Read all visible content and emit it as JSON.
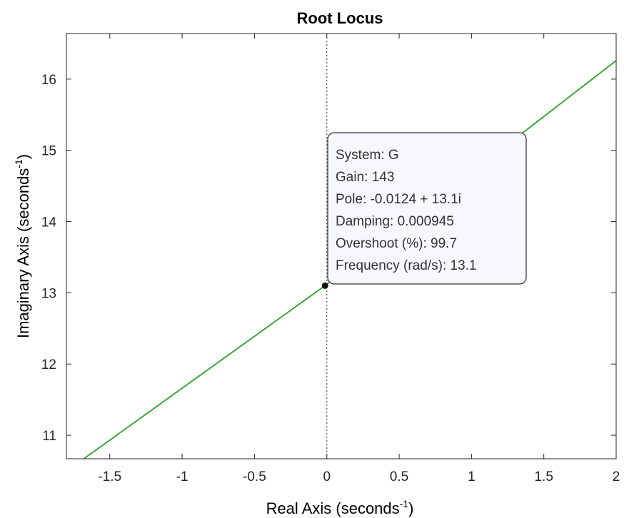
{
  "chart_data": {
    "type": "line",
    "title": "Root Locus",
    "xlabel": {
      "text": "Real Axis (seconds",
      "exponent": "-1",
      "close": ")"
    },
    "ylabel": {
      "text": "Imaginary Axis (seconds",
      "exponent": "-1",
      "close": ")"
    },
    "xlim": [
      -1.8,
      2
    ],
    "ylim": [
      10.67,
      16.64
    ],
    "xticks": [
      -1.5,
      -1,
      -0.5,
      0,
      0.5,
      1,
      1.5,
      2
    ],
    "xtick_labels": [
      "-1.5",
      "-1",
      "-0.5",
      "0",
      "0.5",
      "1",
      "1.5",
      "2"
    ],
    "yticks": [
      11,
      12,
      13,
      14,
      15,
      16
    ],
    "ytick_labels": [
      "11",
      "12",
      "13",
      "14",
      "15",
      "16"
    ],
    "grid": false,
    "series": [
      {
        "color": "#2ca02c",
        "x": [
          -1.68,
          -0.0124,
          2.0
        ],
        "y": [
          10.67,
          13.1,
          16.26
        ]
      }
    ],
    "reference_line": {
      "x": 0,
      "style": "dotted",
      "color": "#555555"
    },
    "marker": {
      "x": -0.0124,
      "y": 13.1,
      "color": "#111111"
    },
    "datatip": {
      "lines": [
        "System: G",
        "Gain: 143",
        "Pole: -0.0124 + 13.1i",
        "Damping: 0.000945",
        "Overshoot (%): 99.7",
        "Frequency (rad/s): 13.1"
      ]
    }
  }
}
